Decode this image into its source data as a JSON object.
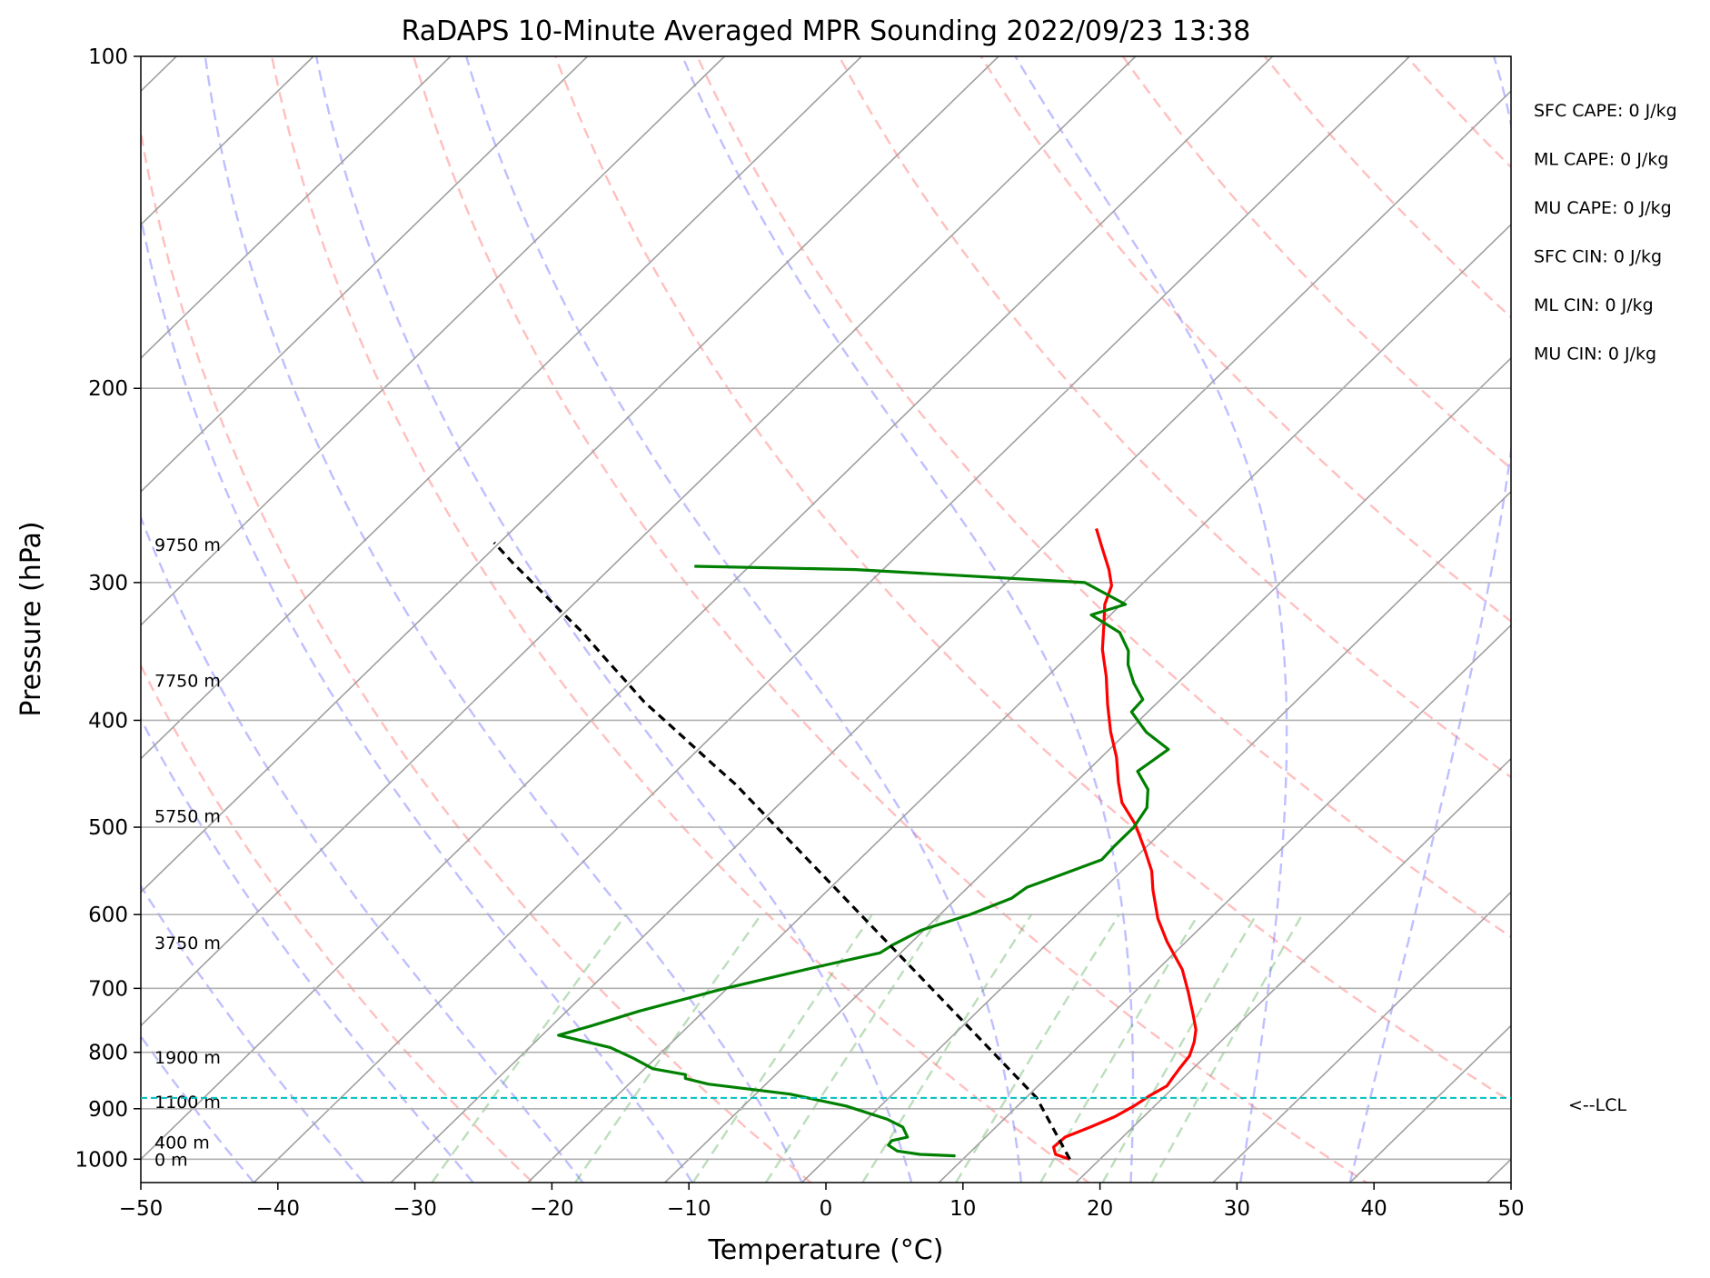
{
  "chart_data": {
    "type": "line",
    "title": "RaDAPS 10-Minute Averaged MPR Sounding 2022/09/23 13:38",
    "xlabel": "Temperature (°C)",
    "ylabel": "Pressure (hPa)",
    "xlim": [
      -50,
      50
    ],
    "ylim": [
      1050,
      100
    ],
    "y_scale": "log",
    "grid": true,
    "x_ticks": [
      "−50",
      "−40",
      "−30",
      "−20",
      "−10",
      "0",
      "10",
      "20",
      "30",
      "40",
      "50"
    ],
    "x_tick_values": [
      -50,
      -40,
      -30,
      -20,
      -10,
      0,
      10,
      20,
      30,
      40,
      50
    ],
    "y_ticks": [
      "100",
      "200",
      "300",
      "400",
      "500",
      "600",
      "700",
      "800",
      "900",
      "1000"
    ],
    "y_tick_values": [
      100,
      200,
      300,
      400,
      500,
      600,
      700,
      800,
      900,
      1000
    ],
    "skew_slope_per_log10": 82.6,
    "height_labels": [
      {
        "text": "9750 m",
        "pressure": 277
      },
      {
        "text": "7750 m",
        "pressure": 368
      },
      {
        "text": "5750 m",
        "pressure": 488
      },
      {
        "text": "3750 m",
        "pressure": 636
      },
      {
        "text": "1900 m",
        "pressure": 808
      },
      {
        "text": "1100 m",
        "pressure": 887
      },
      {
        "text": "400 m",
        "pressure": 965
      },
      {
        "text": "0 m",
        "pressure": 1000
      }
    ],
    "lcl": {
      "pressure": 880,
      "label": "<--LCL",
      "color": "#00bfbf"
    },
    "indices": [
      "SFC CAPE: 0 J/kg",
      "ML CAPE: 0 J/kg",
      "MU CAPE: 0 J/kg",
      "SFC CIN: 0 J/kg",
      "ML CIN: 0 J/kg",
      "MU CIN: 0 J/kg"
    ],
    "series": [
      {
        "color": "#ff0000",
        "points": [
          [
            17.8,
            1000
          ],
          [
            16.4,
            990
          ],
          [
            15.7,
            975
          ],
          [
            15.8,
            955
          ],
          [
            16.9,
            935
          ],
          [
            17.9,
            915
          ],
          [
            18.5,
            895
          ],
          [
            18.9,
            875
          ],
          [
            19.4,
            858
          ],
          [
            19.2,
            843
          ],
          [
            19.0,
            826
          ],
          [
            18.8,
            806
          ],
          [
            18.1,
            783
          ],
          [
            17.3,
            763
          ],
          [
            16.0,
            740
          ],
          [
            13.9,
            705
          ],
          [
            11.8,
            673
          ],
          [
            8.6,
            635
          ],
          [
            6.2,
            605
          ],
          [
            3.7,
            570
          ],
          [
            2.2,
            548
          ],
          [
            0.0,
            523
          ],
          [
            -2.5,
            497
          ],
          [
            -5.1,
            475
          ],
          [
            -6.9,
            455
          ],
          [
            -8.9,
            432
          ],
          [
            -11.2,
            410
          ],
          [
            -13.5,
            387
          ],
          [
            -15.7,
            365
          ],
          [
            -18.0,
            345
          ],
          [
            -19.6,
            329
          ],
          [
            -21.2,
            314
          ],
          [
            -22.1,
            302
          ],
          [
            -23.5,
            292
          ],
          [
            -25.8,
            278
          ],
          [
            -27.5,
            268
          ]
        ]
      },
      {
        "color": "#008000",
        "points": [
          [
            9.2,
            993
          ],
          [
            6.5,
            990
          ],
          [
            4.6,
            983
          ],
          [
            3.5,
            971
          ],
          [
            3.4,
            962
          ],
          [
            4.3,
            955
          ],
          [
            3.2,
            935
          ],
          [
            1.5,
            920
          ],
          [
            -2.5,
            895
          ],
          [
            -7.5,
            873
          ],
          [
            -14.2,
            855
          ],
          [
            -16.3,
            845
          ],
          [
            -16.6,
            838
          ],
          [
            -19.4,
            828
          ],
          [
            -21.6,
            810
          ],
          [
            -24.1,
            792
          ],
          [
            -28.8,
            772
          ],
          [
            -27.1,
            757
          ],
          [
            -24.7,
            734
          ],
          [
            -20.3,
            701
          ],
          [
            -15.0,
            669
          ],
          [
            -11.5,
            650
          ],
          [
            -11.2,
            640
          ],
          [
            -10.2,
            620
          ],
          [
            -7.8,
            600
          ],
          [
            -6.0,
            580
          ],
          [
            -5.7,
            567
          ],
          [
            -3.9,
            550
          ],
          [
            -2.3,
            535
          ],
          [
            -2.4,
            520
          ],
          [
            -2.4,
            500
          ],
          [
            -2.9,
            480
          ],
          [
            -4.2,
            462
          ],
          [
            -6.3,
            445
          ],
          [
            -5.7,
            425
          ],
          [
            -8.6,
            410
          ],
          [
            -11.2,
            393
          ],
          [
            -11.3,
            383
          ],
          [
            -13.2,
            370
          ],
          [
            -15.0,
            356
          ],
          [
            -16.0,
            346
          ],
          [
            -18.0,
            333
          ],
          [
            -21.4,
            321
          ],
          [
            -19.7,
            314
          ],
          [
            -24.3,
            300
          ],
          [
            -42.0,
            292
          ],
          [
            -54.0,
            290
          ]
        ]
      },
      {
        "color": "#000000",
        "dashed": true,
        "points": [
          [
            17.8,
            1000
          ],
          [
            10.8,
            880
          ],
          [
            -15.8,
            600
          ],
          [
            -34.7,
            457
          ],
          [
            -37.9,
            438
          ],
          [
            -42.8,
            410
          ],
          [
            -47.5,
            385
          ],
          [
            -50.7,
            367
          ],
          [
            -53.9,
            350
          ],
          [
            -57.2,
            333
          ],
          [
            -60.5,
            318
          ],
          [
            -63.9,
            303
          ],
          [
            -67.5,
            288
          ],
          [
            -70.4,
            276
          ]
        ]
      }
    ]
  }
}
